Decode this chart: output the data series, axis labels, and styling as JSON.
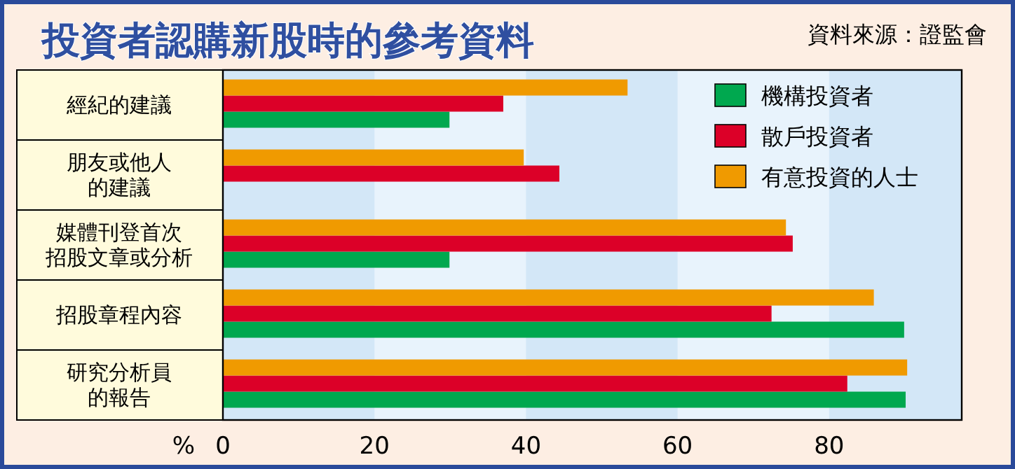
{
  "chart_data": {
    "type": "bar",
    "orientation": "horizontal",
    "title": "投資者認購新股時的參考資料",
    "annotations": [
      "資料來源：證監會"
    ],
    "xlabel": "%",
    "categories": [
      "經紀的建議",
      "朋友或他人的建議",
      "媒體刊登首次招股文章或分析",
      "招股章程內容",
      "研究分析員的報告"
    ],
    "series": [
      {
        "name": "機構投資者",
        "color": "#00a84f",
        "values": [
          29.9,
          null,
          29.9,
          89.9,
          90.1
        ]
      },
      {
        "name": "散戶投資者",
        "color": "#dc0028",
        "values": [
          37.0,
          44.4,
          75.2,
          72.4,
          82.4
        ]
      },
      {
        "name": "有意投資的人士",
        "color": "#f09a00",
        "values": [
          53.4,
          39.7,
          74.3,
          85.9,
          90.3
        ]
      }
    ],
    "xlim": [
      0,
      97.5
    ],
    "xticks": [
      0,
      20,
      40,
      60,
      80
    ],
    "legend": "top right"
  }
}
